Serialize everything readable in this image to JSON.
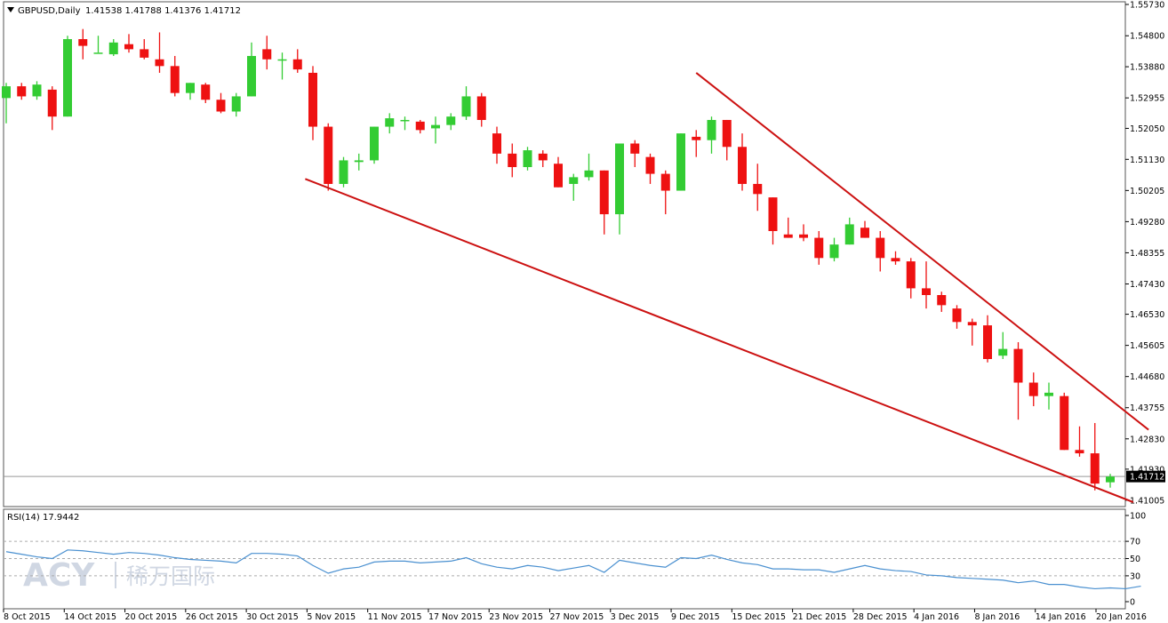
{
  "header": {
    "symbol_label": "GBPUSD,Daily",
    "ohlc_text": "1.41538 1.41788 1.41376 1.41712"
  },
  "rsi_header": {
    "label": "RSI(14) 17.9442"
  },
  "watermark": {
    "latin": "ACY",
    "chinese": "稀万国际"
  },
  "colors": {
    "bull": "#33cc33",
    "bear": "#ee1111",
    "trendline": "#cc1111",
    "rsi_line": "#4a90d0",
    "grid": "#aaaaaa",
    "price_marker_bg": "#000000",
    "price_marker_text": "#ffffff"
  },
  "chart_data": [
    {
      "type": "candlestick",
      "symbol": "GBPUSD",
      "timeframe": "Daily",
      "last_price": 1.41712,
      "last_price_label": "1.41712",
      "y_axis_ticks": [
        "1.55730",
        "1.54800",
        "1.53880",
        "1.52955",
        "1.52050",
        "1.51130",
        "1.50205",
        "1.49280",
        "1.48355",
        "1.47430",
        "1.46530",
        "1.45605",
        "1.44680",
        "1.43755",
        "1.42830",
        "1.41930",
        "1.41005"
      ],
      "x_axis_ticks": [
        "8 Oct 2015",
        "14 Oct 2015",
        "20 Oct 2015",
        "26 Oct 2015",
        "30 Oct 2015",
        "5 Nov 2015",
        "11 Nov 2015",
        "17 Nov 2015",
        "23 Nov 2015",
        "27 Nov 2015",
        "3 Dec 2015",
        "9 Dec 2015",
        "15 Dec 2015",
        "21 Dec 2015",
        "28 Dec 2015",
        "4 Jan 2016",
        "8 Jan 2016",
        "14 Jan 2016",
        "20 Jan 2016"
      ],
      "ylim": [
        1.40845,
        1.5573
      ],
      "candles": [
        {
          "o": 1.5295,
          "h": 1.534,
          "l": 1.522,
          "c": 1.533
        },
        {
          "o": 1.533,
          "h": 1.534,
          "l": 1.529,
          "c": 1.53
        },
        {
          "o": 1.53,
          "h": 1.5345,
          "l": 1.529,
          "c": 1.5335
        },
        {
          "o": 1.532,
          "h": 1.533,
          "l": 1.52,
          "c": 1.524
        },
        {
          "o": 1.524,
          "h": 1.548,
          "l": 1.524,
          "c": 1.547
        },
        {
          "o": 1.547,
          "h": 1.55,
          "l": 1.541,
          "c": 1.545
        },
        {
          "o": 1.543,
          "h": 1.548,
          "l": 1.543,
          "c": 1.543
        },
        {
          "o": 1.5425,
          "h": 1.547,
          "l": 1.542,
          "c": 1.546
        },
        {
          "o": 1.5455,
          "h": 1.5485,
          "l": 1.543,
          "c": 1.544
        },
        {
          "o": 1.544,
          "h": 1.547,
          "l": 1.541,
          "c": 1.5415
        },
        {
          "o": 1.541,
          "h": 1.549,
          "l": 1.537,
          "c": 1.539
        },
        {
          "o": 1.539,
          "h": 1.542,
          "l": 1.53,
          "c": 1.531
        },
        {
          "o": 1.531,
          "h": 1.534,
          "l": 1.529,
          "c": 1.534
        },
        {
          "o": 1.5335,
          "h": 1.534,
          "l": 1.528,
          "c": 1.529
        },
        {
          "o": 1.529,
          "h": 1.531,
          "l": 1.525,
          "c": 1.5255
        },
        {
          "o": 1.5255,
          "h": 1.531,
          "l": 1.524,
          "c": 1.53
        },
        {
          "o": 1.53,
          "h": 1.546,
          "l": 1.53,
          "c": 1.542
        },
        {
          "o": 1.544,
          "h": 1.548,
          "l": 1.538,
          "c": 1.541
        },
        {
          "o": 1.541,
          "h": 1.543,
          "l": 1.535,
          "c": 1.541
        },
        {
          "o": 1.541,
          "h": 1.544,
          "l": 1.537,
          "c": 1.538
        },
        {
          "o": 1.537,
          "h": 1.539,
          "l": 1.517,
          "c": 1.521
        },
        {
          "o": 1.521,
          "h": 1.522,
          "l": 1.502,
          "c": 1.504
        },
        {
          "o": 1.504,
          "h": 1.512,
          "l": 1.503,
          "c": 1.511
        },
        {
          "o": 1.5105,
          "h": 1.513,
          "l": 1.508,
          "c": 1.511
        },
        {
          "o": 1.511,
          "h": 1.521,
          "l": 1.51,
          "c": 1.521
        },
        {
          "o": 1.521,
          "h": 1.525,
          "l": 1.519,
          "c": 1.5235
        },
        {
          "o": 1.523,
          "h": 1.524,
          "l": 1.52,
          "c": 1.523
        },
        {
          "o": 1.5225,
          "h": 1.523,
          "l": 1.519,
          "c": 1.52
        },
        {
          "o": 1.5205,
          "h": 1.524,
          "l": 1.516,
          "c": 1.5215
        },
        {
          "o": 1.5215,
          "h": 1.525,
          "l": 1.52,
          "c": 1.524
        },
        {
          "o": 1.524,
          "h": 1.533,
          "l": 1.523,
          "c": 1.53
        },
        {
          "o": 1.53,
          "h": 1.531,
          "l": 1.521,
          "c": 1.523
        },
        {
          "o": 1.519,
          "h": 1.521,
          "l": 1.51,
          "c": 1.513
        },
        {
          "o": 1.513,
          "h": 1.516,
          "l": 1.506,
          "c": 1.509
        },
        {
          "o": 1.509,
          "h": 1.515,
          "l": 1.508,
          "c": 1.514
        },
        {
          "o": 1.513,
          "h": 1.514,
          "l": 1.509,
          "c": 1.511
        },
        {
          "o": 1.51,
          "h": 1.512,
          "l": 1.503,
          "c": 1.503
        },
        {
          "o": 1.504,
          "h": 1.507,
          "l": 1.499,
          "c": 1.506
        },
        {
          "o": 1.506,
          "h": 1.513,
          "l": 1.505,
          "c": 1.508
        },
        {
          "o": 1.508,
          "h": 1.508,
          "l": 1.489,
          "c": 1.495
        },
        {
          "o": 1.495,
          "h": 1.516,
          "l": 1.489,
          "c": 1.516
        },
        {
          "o": 1.516,
          "h": 1.517,
          "l": 1.509,
          "c": 1.513
        },
        {
          "o": 1.512,
          "h": 1.513,
          "l": 1.504,
          "c": 1.507
        },
        {
          "o": 1.507,
          "h": 1.508,
          "l": 1.495,
          "c": 1.502
        },
        {
          "o": 1.502,
          "h": 1.519,
          "l": 1.502,
          "c": 1.519
        },
        {
          "o": 1.518,
          "h": 1.52,
          "l": 1.512,
          "c": 1.517
        },
        {
          "o": 1.517,
          "h": 1.524,
          "l": 1.513,
          "c": 1.523
        },
        {
          "o": 1.523,
          "h": 1.523,
          "l": 1.511,
          "c": 1.515
        },
        {
          "o": 1.515,
          "h": 1.519,
          "l": 1.502,
          "c": 1.504
        },
        {
          "o": 1.504,
          "h": 1.51,
          "l": 1.496,
          "c": 1.501
        },
        {
          "o": 1.5,
          "h": 1.5,
          "l": 1.486,
          "c": 1.49
        },
        {
          "o": 1.489,
          "h": 1.494,
          "l": 1.488,
          "c": 1.488
        },
        {
          "o": 1.489,
          "h": 1.492,
          "l": 1.487,
          "c": 1.488
        },
        {
          "o": 1.488,
          "h": 1.49,
          "l": 1.48,
          "c": 1.482
        },
        {
          "o": 1.482,
          "h": 1.488,
          "l": 1.481,
          "c": 1.486
        },
        {
          "o": 1.486,
          "h": 1.494,
          "l": 1.486,
          "c": 1.492
        },
        {
          "o": 1.491,
          "h": 1.493,
          "l": 1.488,
          "c": 1.488
        },
        {
          "o": 1.488,
          "h": 1.49,
          "l": 1.478,
          "c": 1.482
        },
        {
          "o": 1.482,
          "h": 1.484,
          "l": 1.48,
          "c": 1.481
        },
        {
          "o": 1.481,
          "h": 1.482,
          "l": 1.47,
          "c": 1.473
        },
        {
          "o": 1.473,
          "h": 1.481,
          "l": 1.467,
          "c": 1.471
        },
        {
          "o": 1.471,
          "h": 1.472,
          "l": 1.466,
          "c": 1.468
        },
        {
          "o": 1.467,
          "h": 1.468,
          "l": 1.461,
          "c": 1.463
        },
        {
          "o": 1.463,
          "h": 1.464,
          "l": 1.456,
          "c": 1.462
        },
        {
          "o": 1.462,
          "h": 1.465,
          "l": 1.451,
          "c": 1.452
        },
        {
          "o": 1.453,
          "h": 1.46,
          "l": 1.452,
          "c": 1.455
        },
        {
          "o": 1.455,
          "h": 1.457,
          "l": 1.434,
          "c": 1.445
        },
        {
          "o": 1.445,
          "h": 1.448,
          "l": 1.438,
          "c": 1.441
        },
        {
          "o": 1.441,
          "h": 1.445,
          "l": 1.437,
          "c": 1.442
        },
        {
          "o": 1.441,
          "h": 1.442,
          "l": 1.425,
          "c": 1.425
        },
        {
          "o": 1.425,
          "h": 1.432,
          "l": 1.423,
          "c": 1.424
        },
        {
          "o": 1.424,
          "h": 1.433,
          "l": 1.413,
          "c": 1.415
        },
        {
          "o": 1.4154,
          "h": 1.4179,
          "l": 1.4138,
          "c": 1.4171
        }
      ],
      "trendlines": [
        {
          "name": "upper",
          "start_index": 45,
          "start_price": 1.537,
          "end_index": 74.5,
          "end_price": 1.431
        },
        {
          "name": "lower",
          "start_index": 19.5,
          "start_price": 1.5055,
          "end_index": 73.5,
          "end_price": 1.4095
        }
      ]
    },
    {
      "type": "line",
      "indicator": "RSI(14)",
      "value_label": "17.9442",
      "y_axis_ticks": [
        "100",
        "70",
        "50",
        "30",
        "0"
      ],
      "ylim": [
        0,
        100
      ],
      "levels": [
        70,
        50,
        30
      ],
      "series": [
        {
          "values": [
            58,
            55,
            52,
            50,
            60,
            59,
            57,
            55,
            57,
            56,
            54,
            51,
            49,
            48,
            47,
            45,
            56,
            56,
            55,
            53,
            42,
            33,
            38,
            40,
            46,
            47,
            47,
            45,
            46,
            47,
            51,
            44,
            40,
            38,
            42,
            40,
            36,
            39,
            42,
            34,
            48,
            45,
            42,
            40,
            51,
            50,
            54,
            49,
            45,
            43,
            38,
            38,
            37,
            37,
            34,
            38,
            42,
            38,
            36,
            35,
            31,
            30,
            28,
            27,
            26,
            25,
            22,
            24,
            20,
            20,
            17,
            15,
            16,
            15,
            18
          ]
        }
      ]
    }
  ]
}
